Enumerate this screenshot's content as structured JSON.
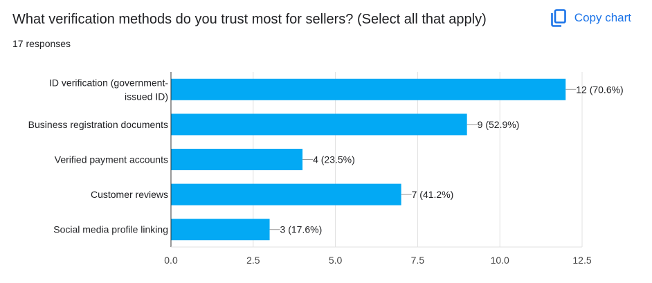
{
  "header": {
    "title": "What verification methods do you trust most for sellers? (Select all that apply)",
    "responses": "17 responses",
    "copy_label": "Copy chart",
    "copy_icon": "copy-icon"
  },
  "colors": {
    "bar": "#03a9f4",
    "accent": "#1a73e8",
    "grid": "#e0e0e0",
    "text": "#202124"
  },
  "chart_data": {
    "type": "bar",
    "orientation": "horizontal",
    "categories": [
      [
        "ID verification (government-",
        "issued ID)"
      ],
      [
        "Business registration documents"
      ],
      [
        "Verified payment accounts"
      ],
      [
        "Customer reviews"
      ],
      [
        "Social media profile linking"
      ]
    ],
    "values": [
      12,
      9,
      4,
      7,
      3
    ],
    "data_labels": [
      "12 (70.6%)",
      "9 (52.9%)",
      "4 (23.5%)",
      "7 (41.2%)",
      "3 (17.6%)"
    ],
    "xlim": [
      0,
      12.5
    ],
    "xticks": [
      "0.0",
      "2.5",
      "5.0",
      "7.5",
      "10.0",
      "12.5"
    ],
    "grid": true,
    "legend": "none"
  }
}
